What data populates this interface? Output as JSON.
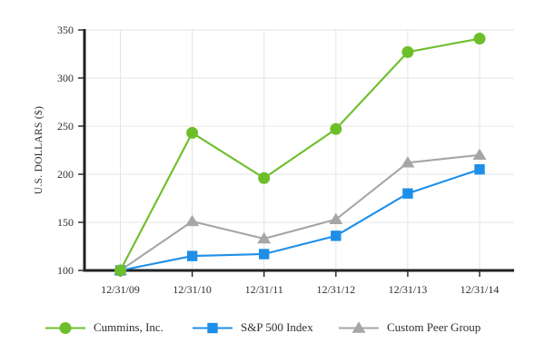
{
  "chart_data": {
    "type": "line",
    "title": "",
    "xlabel": "",
    "ylabel": "U.S. DOLLARS ($)",
    "categories": [
      "12/31/09",
      "12/31/10",
      "12/31/11",
      "12/31/12",
      "12/31/13",
      "12/31/14"
    ],
    "series": [
      {
        "name": "Cummins, Inc.",
        "values": [
          100,
          243,
          196,
          247,
          327,
          341
        ],
        "color": "#6DBE2B",
        "marker": "circle"
      },
      {
        "name": "S&P 500 Index",
        "values": [
          100,
          115,
          117,
          136,
          180,
          205
        ],
        "color": "#1E8FE8",
        "marker": "square"
      },
      {
        "name": "Custom Peer Group",
        "values": [
          100,
          151,
          133,
          153,
          212,
          220
        ],
        "color": "#A6A6A6",
        "marker": "triangle"
      }
    ],
    "ylim": [
      100,
      350
    ],
    "yticks": [
      100,
      150,
      200,
      250,
      300,
      350
    ],
    "grid": true,
    "legend_position": "bottom"
  },
  "colors": {
    "axis": "#222222",
    "grid": "#E4E4E4",
    "text": "#2F2F2F",
    "background": "#FFFFFF"
  }
}
